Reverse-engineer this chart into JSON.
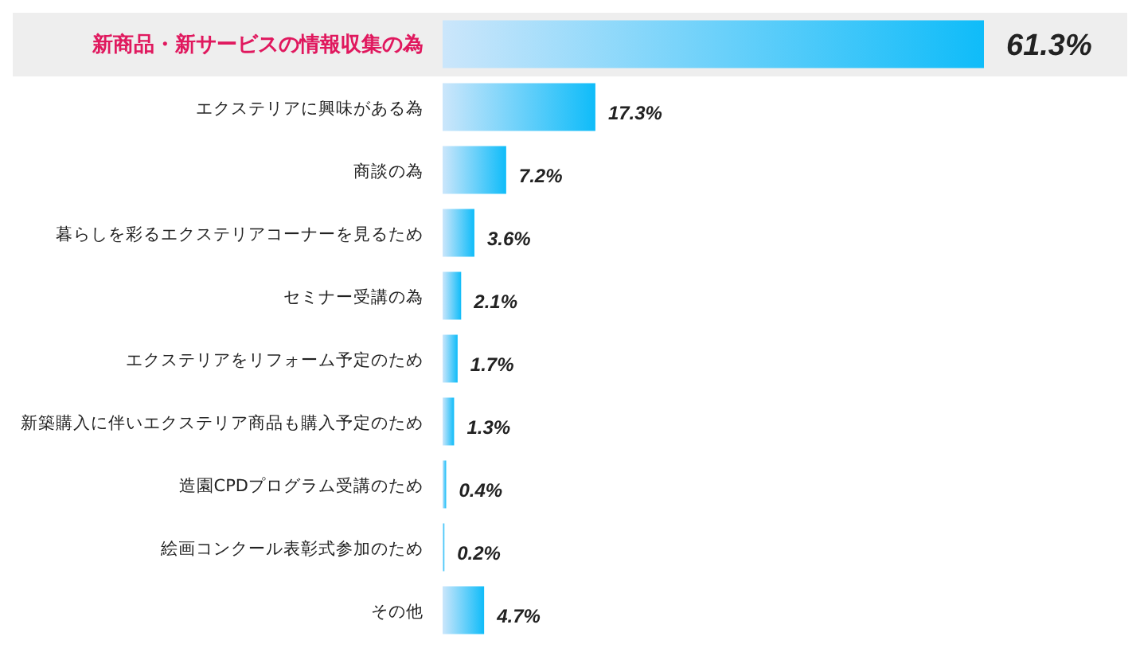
{
  "chart_data": {
    "type": "bar",
    "orientation": "horizontal",
    "categories": [
      "新商品・新サービスの情報収集の為",
      "エクステリアに興味がある為",
      "商談の為",
      "暮らしを彩るエクステリアコーナーを見るため",
      "セミナー受講の為",
      "エクステリアをリフォーム予定のため",
      "新築購入に伴いエクステリア商品も購入予定のため",
      "造園CPDプログラム受講のため",
      "絵画コンクール表彰式参加のため",
      "その他"
    ],
    "values": [
      61.3,
      17.3,
      7.2,
      3.6,
      2.1,
      1.7,
      1.3,
      0.4,
      0.2,
      4.7
    ],
    "value_labels": [
      "61.3%",
      "17.3%",
      "7.2%",
      "3.6%",
      "2.1%",
      "1.7%",
      "1.3%",
      "0.4%",
      "0.2%",
      "4.7%"
    ],
    "color": "#0fbcf9"
  }
}
